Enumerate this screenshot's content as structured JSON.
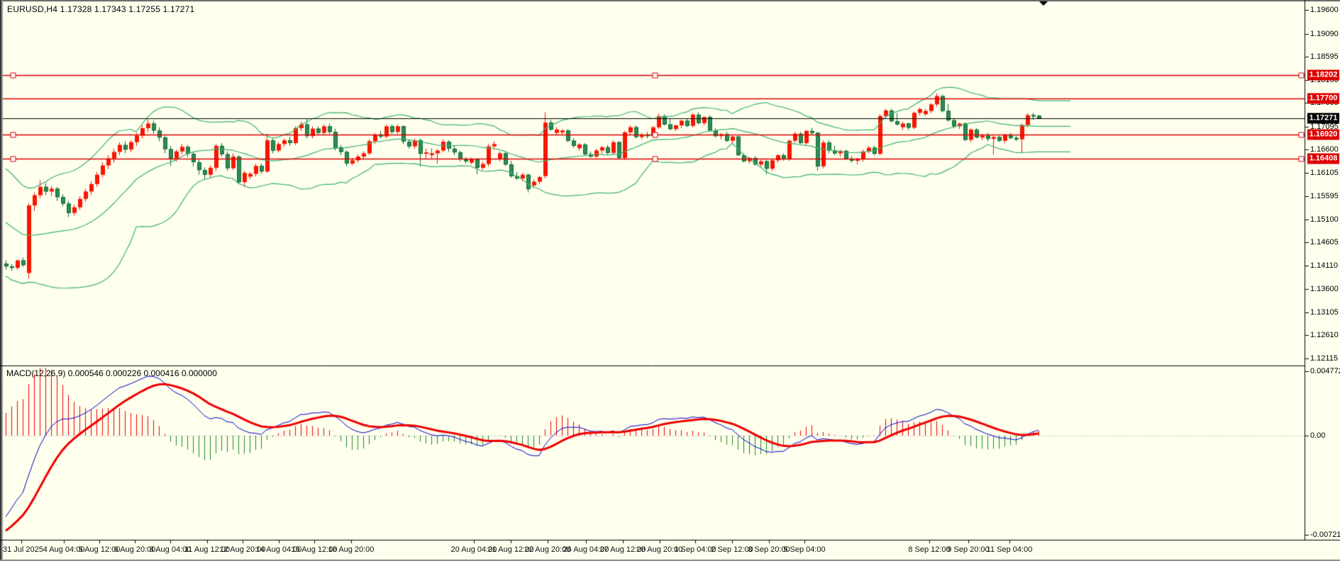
{
  "header": {
    "symbol": "EURUSD,H4",
    "open": "1.17328",
    "high": "1.17343",
    "low": "1.17255",
    "close": "1.17271",
    "title_line": "EURUSD,H4  1.17328 1.17343 1.17255 1.17271"
  },
  "macd_panel": {
    "title": "MACD(12,26,9) 0.000546 0.000226 0.000416 0.000000",
    "axis_labels": [
      {
        "text": "0.004772",
        "value": 0.004772
      },
      {
        "text": "0.00",
        "value": 0.0
      },
      {
        "text": "-0.007212",
        "value": -0.007212
      }
    ]
  },
  "price_axis": {
    "labels": [
      "1.19600",
      "1.19090",
      "1.18595",
      "1.18100",
      "1.17605",
      "1.17095",
      "1.16600",
      "1.16105",
      "1.15595",
      "1.15100",
      "1.14605",
      "1.14110",
      "1.13600",
      "1.13105",
      "1.12610",
      "1.12115"
    ]
  },
  "hlines": [
    {
      "price": 1.18202,
      "label": "1.18202",
      "selected": true
    },
    {
      "price": 1.177,
      "label": "1.17700",
      "selected": false
    },
    {
      "price": 1.1692,
      "label": "1.16920",
      "selected": true
    },
    {
      "price": 1.16408,
      "label": "1.16408",
      "selected": true
    }
  ],
  "current_price": {
    "value": 1.17271,
    "label": "1.17271"
  },
  "time_axis": [
    {
      "label": "31 Jul 2025",
      "x": 4,
      "left": true
    },
    {
      "label": "4 Aug 04:00",
      "x": 90
    },
    {
      "label": "5 Aug 12:00",
      "x": 140
    },
    {
      "label": "6 Aug 20:00",
      "x": 190
    },
    {
      "label": "8 Aug 04:00",
      "x": 240
    },
    {
      "label": "11 Aug 12:00",
      "x": 292
    },
    {
      "label": "12 Aug 20:00",
      "x": 342
    },
    {
      "label": "14 Aug 04:00",
      "x": 393
    },
    {
      "label": "15 Aug 12:00",
      "x": 443
    },
    {
      "label": "18 Aug 20:00",
      "x": 495
    },
    {
      "label": "20 Aug 04:00",
      "x": 668
    },
    {
      "label": "21 Aug 12:00",
      "x": 720
    },
    {
      "label": "22 Aug 20:00",
      "x": 772
    },
    {
      "label": "26 Aug 04:00",
      "x": 826
    },
    {
      "label": "27 Aug 12:00",
      "x": 878
    },
    {
      "label": "28 Aug 20:00",
      "x": 930
    },
    {
      "label": "1 Sep 04:00",
      "x": 980
    },
    {
      "label": "2 Sep 12:00",
      "x": 1032
    },
    {
      "label": "3 Sep 20:00",
      "x": 1084
    },
    {
      "label": "5 Sep 04:00",
      "x": 1134
    },
    {
      "label": "8 Sep 12:00",
      "x": 1310
    },
    {
      "label": "9 Sep 20:00",
      "x": 1365
    },
    {
      "label": "11 Sep 04:00",
      "x": 1423
    }
  ],
  "chart_data": {
    "type": "candlestick",
    "symbol": "EURUSD",
    "timeframe": "H4",
    "ylim": [
      1.12115,
      1.196
    ],
    "macd_ylim": [
      -0.007212,
      0.004772
    ],
    "grid": false,
    "indicators": {
      "bollinger": {
        "period": 20,
        "deviation": 2
      },
      "macd": {
        "fast": 12,
        "slow": 26,
        "signal": 9
      }
    },
    "x_start": 8,
    "x_step": 8,
    "candles": [
      [
        1.1415,
        1.1422,
        1.1402,
        1.1409
      ],
      [
        1.1409,
        1.1414,
        1.14,
        1.1406
      ],
      [
        1.1406,
        1.1424,
        1.1402,
        1.1422
      ],
      [
        1.1422,
        1.1428,
        1.1408,
        1.1412
      ],
      [
        1.1395,
        1.1545,
        1.1383,
        1.154
      ],
      [
        1.154,
        1.1568,
        1.1528,
        1.1562
      ],
      [
        1.1562,
        1.1594,
        1.1556,
        1.158
      ],
      [
        1.158,
        1.1588,
        1.1562,
        1.157
      ],
      [
        1.157,
        1.1582,
        1.156,
        1.1576
      ],
      [
        1.1576,
        1.158,
        1.155,
        1.1558
      ],
      [
        1.1558,
        1.1564,
        1.1538,
        1.1544
      ],
      [
        1.1544,
        1.155,
        1.1515,
        1.1524
      ],
      [
        1.1524,
        1.1542,
        1.1518,
        1.1536
      ],
      [
        1.1536,
        1.156,
        1.153,
        1.1554
      ],
      [
        1.1554,
        1.1576,
        1.1548,
        1.157
      ],
      [
        1.157,
        1.1592,
        1.1562,
        1.1586
      ],
      [
        1.1586,
        1.1612,
        1.158,
        1.1606
      ],
      [
        1.1606,
        1.1633,
        1.16,
        1.1626
      ],
      [
        1.1626,
        1.1648,
        1.1618,
        1.1641
      ],
      [
        1.1641,
        1.1662,
        1.1632,
        1.1655
      ],
      [
        1.1655,
        1.1676,
        1.1648,
        1.167
      ],
      [
        1.167,
        1.1678,
        1.1652,
        1.166
      ],
      [
        1.166,
        1.168,
        1.1654,
        1.1676
      ],
      [
        1.1676,
        1.1696,
        1.1668,
        1.169
      ],
      [
        1.169,
        1.1712,
        1.1684,
        1.1706
      ],
      [
        1.1706,
        1.1725,
        1.1698,
        1.1716
      ],
      [
        1.1716,
        1.1722,
        1.1694,
        1.1701
      ],
      [
        1.1701,
        1.1708,
        1.1678,
        1.1686
      ],
      [
        1.1686,
        1.169,
        1.1652,
        1.1661
      ],
      [
        1.1661,
        1.1668,
        1.1625,
        1.1641
      ],
      [
        1.1641,
        1.166,
        1.1634,
        1.1656
      ],
      [
        1.1656,
        1.1672,
        1.165,
        1.1666
      ],
      [
        1.1666,
        1.167,
        1.1644,
        1.1651
      ],
      [
        1.1651,
        1.1656,
        1.1624,
        1.1633
      ],
      [
        1.1633,
        1.1638,
        1.1606,
        1.1616
      ],
      [
        1.1616,
        1.1622,
        1.1595,
        1.1606
      ],
      [
        1.1606,
        1.1626,
        1.16,
        1.1621
      ],
      [
        1.1621,
        1.1672,
        1.1614,
        1.1668
      ],
      [
        1.1668,
        1.1674,
        1.1645,
        1.165
      ],
      [
        1.165,
        1.1656,
        1.1614,
        1.162
      ],
      [
        1.162,
        1.1652,
        1.1616,
        1.1645
      ],
      [
        1.1645,
        1.1648,
        1.1586,
        1.159
      ],
      [
        1.159,
        1.1614,
        1.158,
        1.161
      ],
      [
        1.1602,
        1.1612,
        1.1596,
        1.1608
      ],
      [
        1.1608,
        1.163,
        1.1602,
        1.1625
      ],
      [
        1.1625,
        1.163,
        1.1608,
        1.1613
      ],
      [
        1.1613,
        1.1694,
        1.161,
        1.168
      ],
      [
        1.168,
        1.1684,
        1.1652,
        1.1658
      ],
      [
        1.1658,
        1.1676,
        1.1654,
        1.1672
      ],
      [
        1.1672,
        1.1684,
        1.1666,
        1.168
      ],
      [
        1.168,
        1.1688,
        1.1668,
        1.1674
      ],
      [
        1.1674,
        1.171,
        1.167,
        1.1706
      ],
      [
        1.1706,
        1.172,
        1.17,
        1.1714
      ],
      [
        1.1714,
        1.1727,
        1.1684,
        1.1689
      ],
      [
        1.1689,
        1.171,
        1.1684,
        1.1705
      ],
      [
        1.1705,
        1.171,
        1.1692,
        1.1696
      ],
      [
        1.1696,
        1.1714,
        1.1692,
        1.171
      ],
      [
        1.171,
        1.1716,
        1.1694,
        1.1698
      ],
      [
        1.1698,
        1.1705,
        1.1658,
        1.1663
      ],
      [
        1.1663,
        1.167,
        1.1648,
        1.1655
      ],
      [
        1.1655,
        1.1658,
        1.1624,
        1.163
      ],
      [
        1.163,
        1.1642,
        1.1626,
        1.1637
      ],
      [
        1.1637,
        1.165,
        1.1632,
        1.1645
      ],
      [
        1.1645,
        1.1656,
        1.164,
        1.1652
      ],
      [
        1.1652,
        1.1682,
        1.1648,
        1.1678
      ],
      [
        1.1678,
        1.1696,
        1.1672,
        1.1692
      ],
      [
        1.1692,
        1.17,
        1.1684,
        1.1688
      ],
      [
        1.1688,
        1.1714,
        1.1684,
        1.171
      ],
      [
        1.171,
        1.1714,
        1.1694,
        1.1698
      ],
      [
        1.1698,
        1.1714,
        1.1694,
        1.171
      ],
      [
        1.171,
        1.1712,
        1.1672,
        1.1677
      ],
      [
        1.1677,
        1.1682,
        1.1662,
        1.1667
      ],
      [
        1.1667,
        1.1684,
        1.1662,
        1.168
      ],
      [
        1.168,
        1.1684,
        1.1624,
        1.1651
      ],
      [
        1.1651,
        1.1662,
        1.164,
        1.1654
      ],
      [
        1.1648,
        1.1663,
        1.1641,
        1.1652
      ],
      [
        1.1652,
        1.1661,
        1.163,
        1.1658
      ],
      [
        1.1658,
        1.1682,
        1.1654,
        1.1677
      ],
      [
        1.1677,
        1.168,
        1.1655,
        1.1662
      ],
      [
        1.1662,
        1.1668,
        1.1648,
        1.1654
      ],
      [
        1.1654,
        1.1658,
        1.1634,
        1.1639
      ],
      [
        1.1639,
        1.1644,
        1.163,
        1.1635
      ],
      [
        1.1632,
        1.1643,
        1.1628,
        1.1639
      ],
      [
        1.1639,
        1.1641,
        1.1607,
        1.1621
      ],
      [
        1.1621,
        1.1634,
        1.1616,
        1.1629
      ],
      [
        1.1629,
        1.1672,
        1.1624,
        1.1667
      ],
      [
        1.1667,
        1.1678,
        1.166,
        1.1672
      ],
      [
        1.164,
        1.1656,
        1.1634,
        1.1652
      ],
      [
        1.1652,
        1.1656,
        1.1625,
        1.1628
      ],
      [
        1.1628,
        1.1636,
        1.16,
        1.1603
      ],
      [
        1.1603,
        1.1612,
        1.1595,
        1.1598
      ],
      [
        1.1598,
        1.161,
        1.1592,
        1.1606
      ],
      [
        1.1606,
        1.1608,
        1.1568,
        1.1575
      ],
      [
        1.1583,
        1.1596,
        1.1578,
        1.1591
      ],
      [
        1.1591,
        1.1604,
        1.1586,
        1.1601
      ],
      [
        1.1603,
        1.174,
        1.1598,
        1.1718
      ],
      [
        1.1718,
        1.1724,
        1.17,
        1.1703
      ],
      [
        1.1696,
        1.1708,
        1.1692,
        1.1703
      ],
      [
        1.1697,
        1.1704,
        1.1692,
        1.1701
      ],
      [
        1.1701,
        1.1704,
        1.1676,
        1.1679
      ],
      [
        1.1679,
        1.1684,
        1.1664,
        1.1668
      ],
      [
        1.1663,
        1.1674,
        1.1658,
        1.1671
      ],
      [
        1.1671,
        1.1674,
        1.1648,
        1.165
      ],
      [
        1.165,
        1.1656,
        1.1642,
        1.1645
      ],
      [
        1.1645,
        1.1662,
        1.1642,
        1.1658
      ],
      [
        1.1658,
        1.1668,
        1.1652,
        1.1665
      ],
      [
        1.1665,
        1.167,
        1.165,
        1.1653
      ],
      [
        1.1653,
        1.168,
        1.165,
        1.1676
      ],
      [
        1.1676,
        1.1678,
        1.164,
        1.1642
      ],
      [
        1.1642,
        1.17,
        1.1638,
        1.1697
      ],
      [
        1.1697,
        1.1712,
        1.1692,
        1.1708
      ],
      [
        1.1708,
        1.1712,
        1.1684,
        1.1687
      ],
      [
        1.1687,
        1.1696,
        1.1682,
        1.1692
      ],
      [
        1.1692,
        1.1698,
        1.1684,
        1.1689
      ],
      [
        1.1689,
        1.171,
        1.1686,
        1.1708
      ],
      [
        1.1708,
        1.1737,
        1.1704,
        1.1732
      ],
      [
        1.1732,
        1.1736,
        1.1712,
        1.1714
      ],
      [
        1.1714,
        1.1726,
        1.1702,
        1.1704
      ],
      [
        1.1704,
        1.1714,
        1.17,
        1.1712
      ],
      [
        1.1712,
        1.1724,
        1.1706,
        1.1722
      ],
      [
        1.1722,
        1.1726,
        1.1708,
        1.1711
      ],
      [
        1.1711,
        1.1738,
        1.1708,
        1.1735
      ],
      [
        1.1735,
        1.174,
        1.1714,
        1.1717
      ],
      [
        1.1717,
        1.1732,
        1.1712,
        1.173
      ],
      [
        1.173,
        1.1734,
        1.1699,
        1.1701
      ],
      [
        1.1701,
        1.1706,
        1.1686,
        1.1689
      ],
      [
        1.1689,
        1.1696,
        1.1682,
        1.1693
      ],
      [
        1.1693,
        1.1698,
        1.1676,
        1.1679
      ],
      [
        1.1679,
        1.169,
        1.1674,
        1.1688
      ],
      [
        1.1688,
        1.169,
        1.1646,
        1.1648
      ],
      [
        1.1648,
        1.1652,
        1.1632,
        1.1635
      ],
      [
        1.1635,
        1.1644,
        1.163,
        1.1642
      ],
      [
        1.1642,
        1.1646,
        1.1626,
        1.1628
      ],
      [
        1.1628,
        1.1638,
        1.1622,
        1.1635
      ],
      [
        1.1635,
        1.1638,
        1.1607,
        1.1619
      ],
      [
        1.1619,
        1.164,
        1.1614,
        1.1637
      ],
      [
        1.1637,
        1.165,
        1.1632,
        1.1648
      ],
      [
        1.1648,
        1.1652,
        1.1636,
        1.164
      ],
      [
        1.164,
        1.1682,
        1.1636,
        1.1679
      ],
      [
        1.1679,
        1.1698,
        1.1674,
        1.1694
      ],
      [
        1.1694,
        1.1698,
        1.1672,
        1.1674
      ],
      [
        1.1674,
        1.1702,
        1.167,
        1.17
      ],
      [
        1.17,
        1.1706,
        1.1692,
        1.1696
      ],
      [
        1.1696,
        1.1698,
        1.1615,
        1.1624
      ],
      [
        1.1624,
        1.168,
        1.162,
        1.1675
      ],
      [
        1.1675,
        1.168,
        1.1652,
        1.1658
      ],
      [
        1.1658,
        1.1668,
        1.1648,
        1.1652
      ],
      [
        1.1652,
        1.166,
        1.1645,
        1.1657
      ],
      [
        1.1657,
        1.166,
        1.1638,
        1.164
      ],
      [
        1.164,
        1.1646,
        1.1632,
        1.1636
      ],
      [
        1.1636,
        1.1642,
        1.1628,
        1.1639
      ],
      [
        1.1639,
        1.166,
        1.1634,
        1.1656
      ],
      [
        1.1656,
        1.1668,
        1.1652,
        1.1664
      ],
      [
        1.1664,
        1.1668,
        1.1648,
        1.1651
      ],
      [
        1.1651,
        1.1736,
        1.1648,
        1.1732
      ],
      [
        1.1732,
        1.1748,
        1.1728,
        1.1744
      ],
      [
        1.1744,
        1.1748,
        1.1718,
        1.1721
      ],
      [
        1.1721,
        1.1738,
        1.1712,
        1.1714
      ],
      [
        1.1708,
        1.172,
        1.1702,
        1.1716
      ],
      [
        1.1716,
        1.1718,
        1.1702,
        1.1707
      ],
      [
        1.1707,
        1.1742,
        1.1704,
        1.1739
      ],
      [
        1.1739,
        1.175,
        1.1734,
        1.1747
      ],
      [
        1.1736,
        1.1748,
        1.1732,
        1.1743
      ],
      [
        1.1743,
        1.176,
        1.1738,
        1.1757
      ],
      [
        1.1757,
        1.1781,
        1.1752,
        1.1775
      ],
      [
        1.1775,
        1.1778,
        1.174,
        1.1743
      ],
      [
        1.1743,
        1.1758,
        1.172,
        1.1723
      ],
      [
        1.1723,
        1.1728,
        1.1706,
        1.171
      ],
      [
        1.171,
        1.1718,
        1.1704,
        1.1716
      ],
      [
        1.1716,
        1.1718,
        1.1678,
        1.1681
      ],
      [
        1.1681,
        1.1706,
        1.1676,
        1.1703
      ],
      [
        1.1703,
        1.1706,
        1.1684,
        1.1686
      ],
      [
        1.1686,
        1.1694,
        1.168,
        1.169
      ],
      [
        1.169,
        1.1696,
        1.1678,
        1.1683
      ],
      [
        1.1683,
        1.169,
        1.1649,
        1.1687
      ],
      [
        1.1687,
        1.169,
        1.1676,
        1.1679
      ],
      [
        1.1679,
        1.1694,
        1.1674,
        1.1692
      ],
      [
        1.1692,
        1.1696,
        1.1682,
        1.1685
      ],
      [
        1.1685,
        1.169,
        1.1678,
        1.1682
      ],
      [
        1.1682,
        1.1716,
        1.1652,
        1.1713
      ],
      [
        1.1713,
        1.1738,
        1.1708,
        1.1734
      ],
      [
        1.1734,
        1.1739,
        1.1724,
        1.1733
      ],
      [
        1.17328,
        1.17343,
        1.17255,
        1.17271
      ]
    ]
  },
  "colors": {
    "background": "#FFFFEE",
    "bull_candle": "#F81500",
    "bear_candle_fill": "#2E8B57",
    "bear_candle_border": "#0E6B2E",
    "bollinger": "#3CB371",
    "hline": "#DD0000",
    "current_price_line": "#000000",
    "macd_line_blue": "#0000CC",
    "macd_signal_red": "#EE0000",
    "hist_positive": "#EE0000",
    "hist_negative": "#1E8A1E",
    "price_box_red": "#DD0000",
    "price_box_black": "#000000"
  },
  "markers": {
    "shift_triangle": {
      "x": 1471,
      "y": 2
    }
  }
}
